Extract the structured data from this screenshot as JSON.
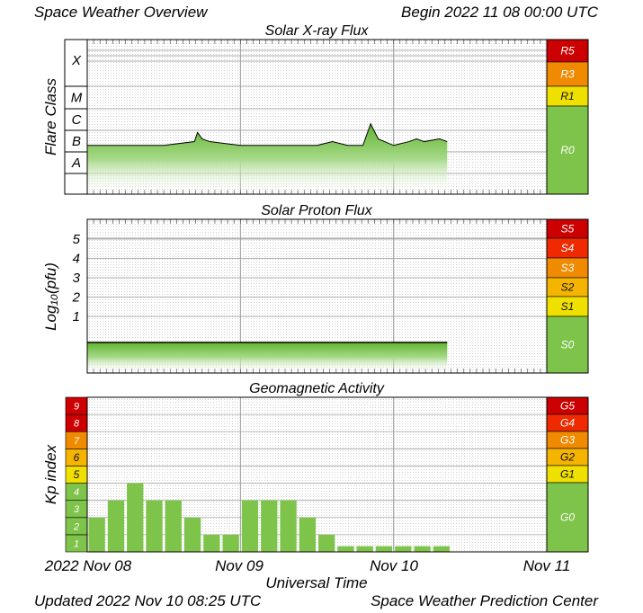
{
  "header": {
    "title": "Space Weather Overview",
    "begin": "Begin 2022 11 08 00:00 UTC"
  },
  "footer": {
    "updated": "Updated 2022 Nov 10 08:25 UTC",
    "center": "Space Weather Prediction Center"
  },
  "x_axis": {
    "label": "Universal Time",
    "ticks": [
      "2022 Nov 08",
      "Nov 09",
      "Nov 10",
      "Nov 11"
    ]
  },
  "colors": {
    "green": "#7ec34a",
    "yellow": "#f0e000",
    "orange_light": "#f5b400",
    "orange": "#f08a00",
    "red": "#ef2a00",
    "dark_red": "#cc0000"
  },
  "chart_data": [
    {
      "type": "line",
      "title": "Solar X-ray Flux",
      "ylabel": "Flare Class",
      "y_classes": [
        "X",
        "M",
        "C",
        "B",
        "A"
      ],
      "x_range_days": [
        0,
        3
      ],
      "data_end_day": 2.35,
      "series": [
        {
          "x_days": [
            0,
            0.2,
            0.5,
            0.7,
            0.72,
            0.75,
            0.8,
            1.0,
            1.3,
            1.5,
            1.6,
            1.7,
            1.8,
            1.85,
            1.9,
            2.0,
            2.1,
            2.15,
            2.2,
            2.3,
            2.35
          ],
          "class_level": [
            "B2",
            "B2",
            "B2",
            "B3",
            "B8",
            "B4",
            "B3",
            "B2",
            "B2",
            "B2",
            "B3",
            "B2",
            "B2",
            "C2",
            "B4",
            "B2",
            "B3",
            "B4",
            "B3",
            "B4",
            "B3"
          ]
        }
      ],
      "scale": [
        {
          "label": "R5",
          "color": "#cc0000"
        },
        {
          "label": "R3",
          "color": "#f08a00"
        },
        {
          "label": "R1",
          "color": "#f0e000"
        },
        {
          "label": "R0",
          "color": "#7ec34a"
        }
      ]
    },
    {
      "type": "line",
      "title": "Solar Proton Flux",
      "ylabel": "Log₁₀(pfu)",
      "yticks": [
        1,
        2,
        3,
        4,
        5
      ],
      "x_range_days": [
        0,
        3
      ],
      "data_end_day": 2.35,
      "series": [
        {
          "x_days": [
            0,
            2.35
          ],
          "log10_pfu": [
            -0.35,
            -0.35
          ]
        }
      ],
      "scale": [
        {
          "label": "S5",
          "color": "#cc0000"
        },
        {
          "label": "S4",
          "color": "#ef2a00"
        },
        {
          "label": "S3",
          "color": "#f08a00"
        },
        {
          "label": "S2",
          "color": "#f5b400"
        },
        {
          "label": "S1",
          "color": "#f0e000"
        },
        {
          "label": "S0",
          "color": "#7ec34a"
        }
      ]
    },
    {
      "type": "bar",
      "title": "Geomagnetic Activity",
      "ylabel": "Kp index",
      "yticks": [
        "1",
        "2",
        "3",
        "4",
        "5",
        "6",
        "7",
        "8",
        "9"
      ],
      "ylim": [
        0,
        9
      ],
      "interval_hours": 3,
      "values": [
        2,
        3,
        4,
        3,
        3,
        2,
        1,
        1,
        3,
        3,
        3,
        2,
        1,
        0.33,
        0.33,
        0.33,
        0.33,
        0.33,
        0.33
      ],
      "scale": [
        {
          "label": "G5",
          "color": "#cc0000"
        },
        {
          "label": "G4",
          "color": "#ef2a00"
        },
        {
          "label": "G3",
          "color": "#f08a00"
        },
        {
          "label": "G2",
          "color": "#f5b400"
        },
        {
          "label": "G1",
          "color": "#f0e000"
        },
        {
          "label": "G0",
          "color": "#7ec34a"
        }
      ]
    }
  ]
}
